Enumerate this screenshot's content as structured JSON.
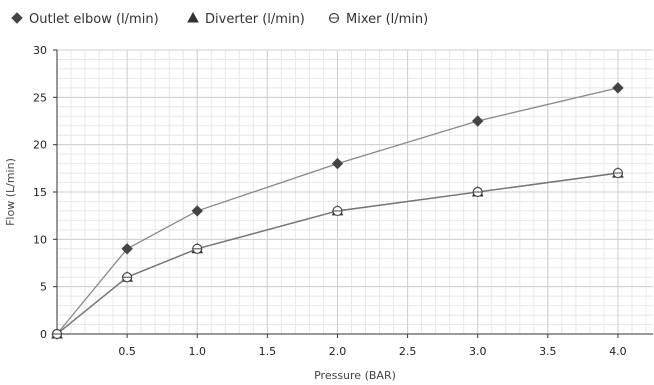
{
  "chart_data": {
    "type": "line",
    "xlabel": "Pressure (BAR)",
    "ylabel": "Flow (L/min)",
    "xlim": [
      0,
      4.25
    ],
    "ylim": [
      0,
      30
    ],
    "x_ticks": [
      "0.5",
      "1.0",
      "1.5",
      "2.0",
      "2.5",
      "3.0",
      "3.5",
      "4.0"
    ],
    "x_tick_values": [
      0.5,
      1.0,
      1.5,
      2.0,
      2.5,
      3.0,
      3.5,
      4.0
    ],
    "y_ticks": [
      "0",
      "5",
      "10",
      "15",
      "20",
      "25",
      "30"
    ],
    "y_tick_values": [
      0,
      5,
      10,
      15,
      20,
      25,
      30
    ],
    "grid": true,
    "legend_position": "top-left",
    "series": [
      {
        "name": "Outlet elbow (l/min)",
        "marker": "diamond",
        "color": "#444444",
        "line_color": "#888888",
        "x": [
          0,
          0.5,
          1.0,
          2.0,
          3.0,
          4.0
        ],
        "y": [
          0,
          9,
          13,
          18,
          22.5,
          26
        ]
      },
      {
        "name": "Diverter (l/min)",
        "marker": "triangle",
        "color": "#333333",
        "line_color": "#666666",
        "x": [
          0,
          0.5,
          1.0,
          2.0,
          3.0,
          4.0
        ],
        "y": [
          0,
          6,
          9,
          13,
          15,
          17
        ]
      },
      {
        "name": "Mixer (l/min)",
        "marker": "open-circle",
        "color": "#444444",
        "line_color": "#777777",
        "x": [
          0,
          0.5,
          1.0,
          2.0,
          3.0,
          4.0
        ],
        "y": [
          0,
          6,
          9,
          13,
          15,
          17
        ]
      }
    ]
  }
}
